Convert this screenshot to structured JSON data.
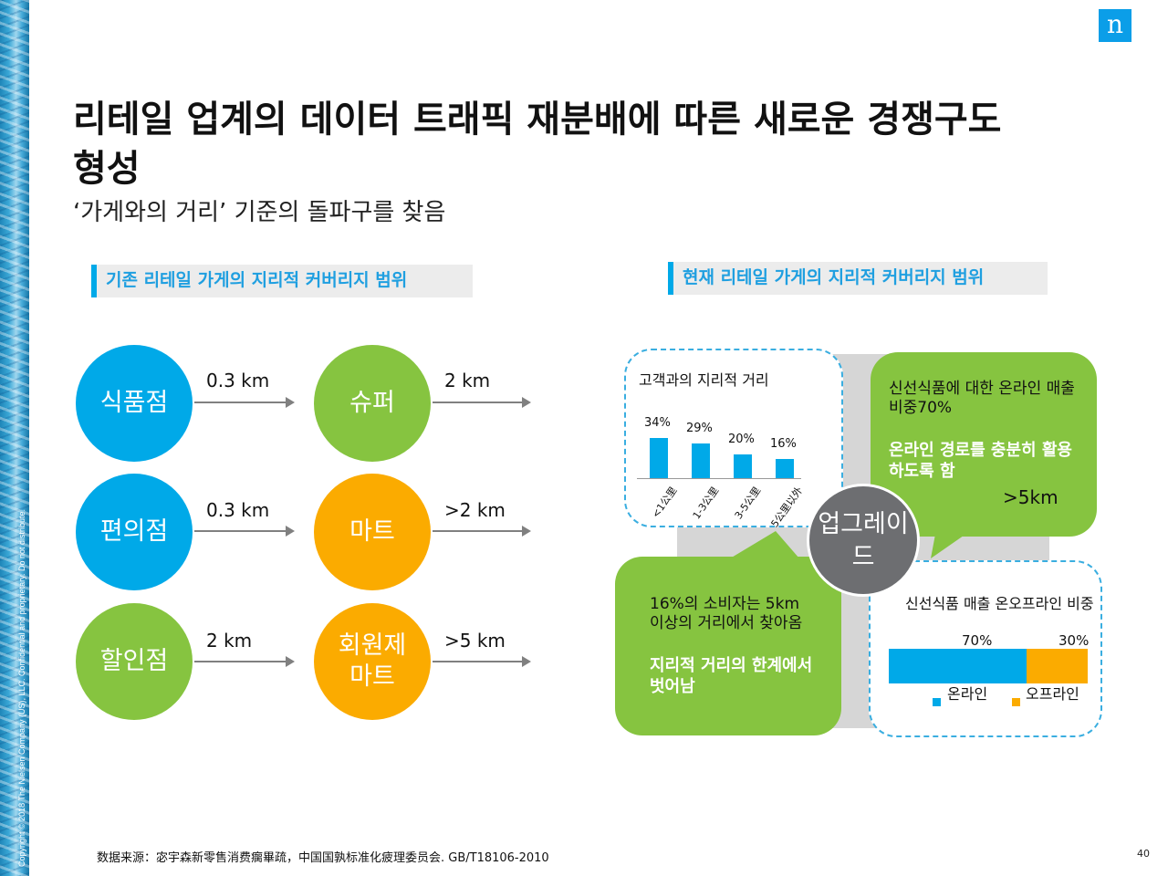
{
  "slide": {
    "title": "리테일 업계의 데이터 트래픽 재분배에 따른 새로운 경쟁구도 형성",
    "subtitle": "‘가게와의 거리’ 기준의 돌파구를 찾음",
    "logo": "n",
    "page_number": "40",
    "copyright": "Copyright © 2018 The Nielsen Company (US), LLC. Confidential and proprietary. Do not distribute.",
    "source": "数据来源：宓宇森新零售消费瘸畢疏，中国国孰标准化疲理委员会. GB/T18106-2010"
  },
  "left": {
    "header": "기존 리테일 가게의 지리적 커버리지 범위",
    "rows": [
      {
        "left_circle": "식품점",
        "left_distance": "0.3 km",
        "right_circle": "슈퍼",
        "right_distance": "2 km"
      },
      {
        "left_circle": "편의점",
        "left_distance": "0.3 km",
        "right_circle": "마트",
        "right_distance": ">2 km"
      },
      {
        "left_circle": "할인점",
        "left_distance": "2 km",
        "right_circle": "회원제 마트",
        "right_distance": ">5 km"
      }
    ]
  },
  "right": {
    "header": "현재 리테일 가게의 지리적 커버리지 범위",
    "center": "업그레이드",
    "distance_panel": {
      "title": "고객과의 지리적 거리",
      "value_labels": [
        "34%",
        "29%",
        "20%",
        "16%"
      ]
    },
    "tr_panel": {
      "line1": "신선식품에 대한 온라인 매출 비중70%",
      "line2": "온라인 경로를 충분히 활용하도록 함",
      "line3": ">5km"
    },
    "bl_panel": {
      "line1": "16%의 소비자는 5km 이상의 거리에서 찾아옴",
      "line2": "지리적 거리의 한계에서 벗어남"
    },
    "ratio_panel": {
      "title": "신선식품 매출 온오프라인 비중",
      "online_label": "70%",
      "offline_label": "30%",
      "legend_online": "온라인",
      "legend_offline": "오프라인"
    }
  },
  "colors": {
    "blue": "#00a9e8",
    "green": "#86c440",
    "orange": "#fbab00",
    "gray": "#6d6e71"
  },
  "chart_data": [
    {
      "type": "bar",
      "title": "고객과의 지리적 거리",
      "categories": [
        "<1公里",
        "1-3公里",
        "3-5公里",
        "5公里以外"
      ],
      "values": [
        34,
        29,
        20,
        16
      ],
      "ylabel": "%",
      "ylim": [
        0,
        40
      ]
    },
    {
      "type": "bar",
      "title": "신선식품 매출 온오프라인 비중",
      "categories": [
        "온라인",
        "오프라인"
      ],
      "values": [
        70,
        30
      ],
      "stacked": true
    }
  ]
}
